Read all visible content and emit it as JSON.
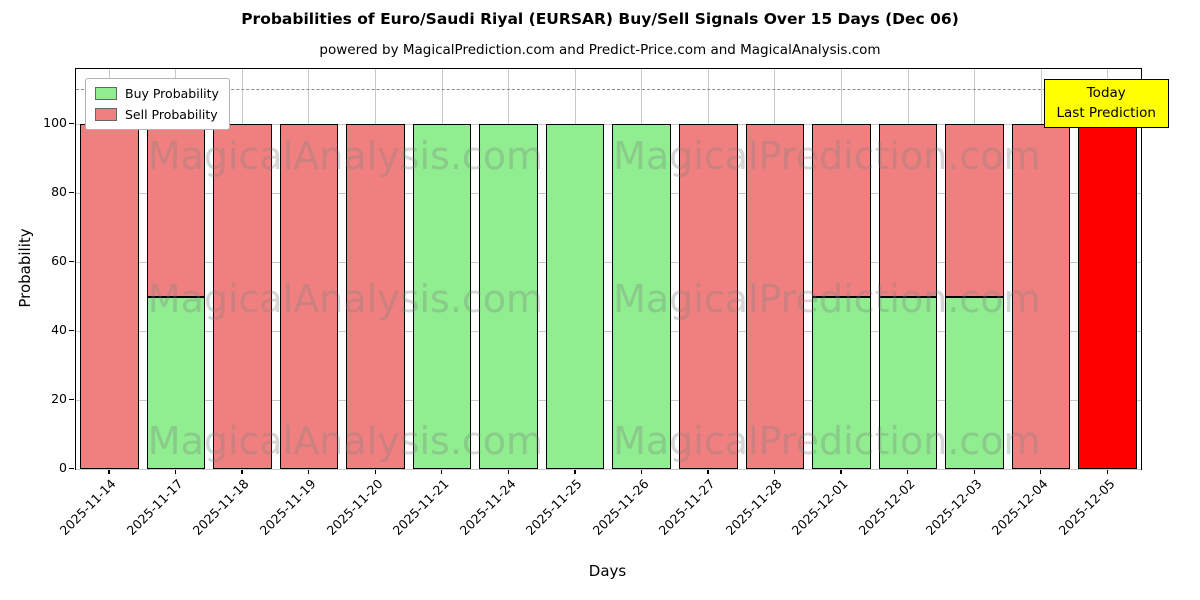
{
  "chart_data": {
    "type": "bar",
    "stacked": true,
    "title": "Probabilities of Euro/Saudi Riyal (EURSAR) Buy/Sell Signals Over 15 Days (Dec 06)",
    "subtitle": "powered by MagicalPrediction.com and Predict-Price.com and MagicalAnalysis.com",
    "xlabel": "Days",
    "ylabel": "Probability",
    "ylim": [
      0,
      116
    ],
    "yticks": [
      0,
      20,
      40,
      60,
      80,
      100
    ],
    "dashed_line_y": 110,
    "grid": true,
    "legend_position": "upper left",
    "categories": [
      "2025-11-14",
      "2025-11-17",
      "2025-11-18",
      "2025-11-19",
      "2025-11-20",
      "2025-11-21",
      "2025-11-24",
      "2025-11-25",
      "2025-11-26",
      "2025-11-27",
      "2025-11-28",
      "2025-12-01",
      "2025-12-02",
      "2025-12-03",
      "2025-12-04",
      "2025-12-05"
    ],
    "series": [
      {
        "name": "Buy Probability",
        "color": "#90ee90",
        "values": [
          0,
          50,
          0,
          0,
          0,
          100,
          100,
          100,
          100,
          0,
          0,
          50,
          50,
          50,
          0,
          0
        ]
      },
      {
        "name": "Sell Probability",
        "color": "#f08080",
        "values": [
          100,
          50,
          100,
          100,
          100,
          0,
          0,
          0,
          0,
          100,
          100,
          50,
          50,
          50,
          100,
          100
        ]
      }
    ],
    "today_index": 15,
    "today_color": "#ff0000",
    "annotation": {
      "line1": "Today",
      "line2": "Last Prediction",
      "bg_color": "#ffff00"
    },
    "watermarks": [
      "MagicalAnalysis.com",
      "MagicalPrediction.com"
    ]
  }
}
